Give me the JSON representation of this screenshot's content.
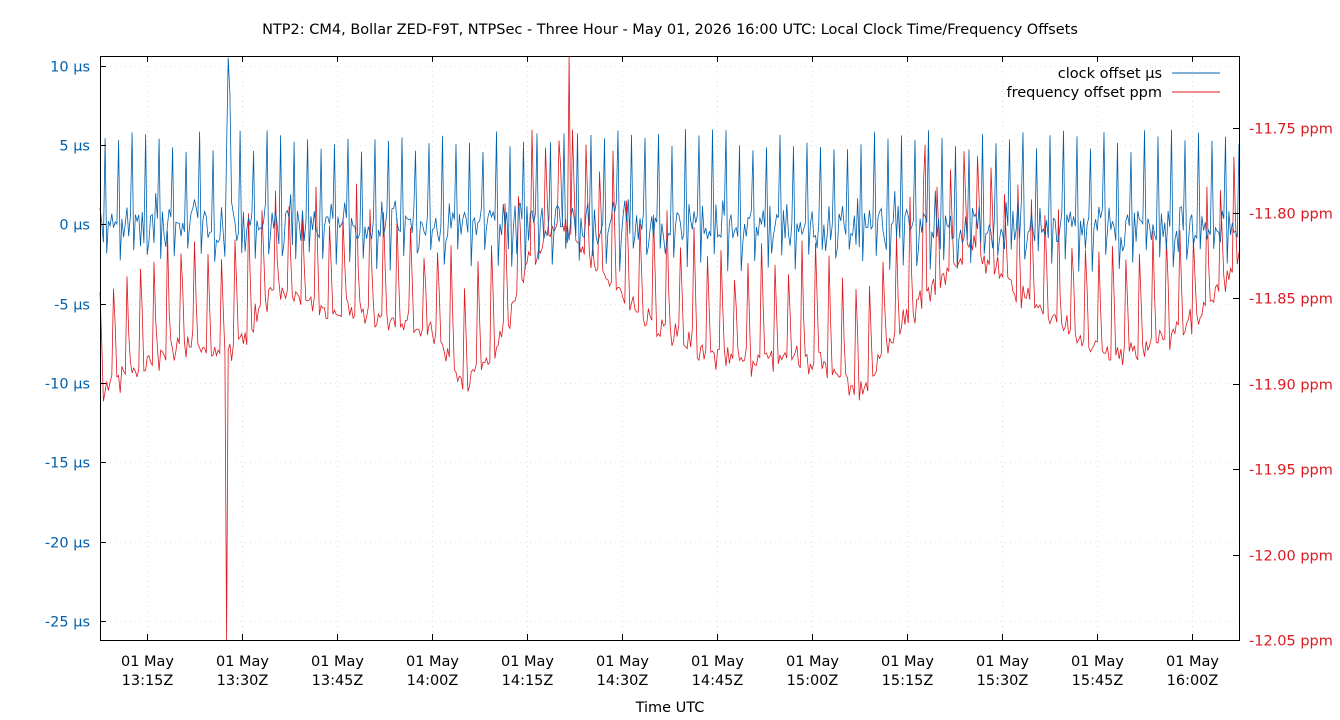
{
  "chart_data": {
    "type": "line",
    "title": "NTP2: CM4, Bollar ZED-F9T, NTPSec - Three Hour - May 01, 2026 16:00 UTC: Local Clock Time/Frequency Offsets",
    "xlabel": "Time UTC",
    "x_range": [
      "2026-05-01T13:07:30Z",
      "2026-05-01T16:07:30Z"
    ],
    "x_ticks": [
      {
        "time": "2026-05-01T13:15:00Z",
        "line1": "01 May",
        "line2": "13:15Z"
      },
      {
        "time": "2026-05-01T13:30:00Z",
        "line1": "01 May",
        "line2": "13:30Z"
      },
      {
        "time": "2026-05-01T13:45:00Z",
        "line1": "01 May",
        "line2": "13:45Z"
      },
      {
        "time": "2026-05-01T14:00:00Z",
        "line1": "01 May",
        "line2": "14:00Z"
      },
      {
        "time": "2026-05-01T14:15:00Z",
        "line1": "01 May",
        "line2": "14:15Z"
      },
      {
        "time": "2026-05-01T14:30:00Z",
        "line1": "01 May",
        "line2": "14:30Z"
      },
      {
        "time": "2026-05-01T14:45:00Z",
        "line1": "01 May",
        "line2": "14:45Z"
      },
      {
        "time": "2026-05-01T15:00:00Z",
        "line1": "01 May",
        "line2": "15:00Z"
      },
      {
        "time": "2026-05-01T15:15:00Z",
        "line1": "01 May",
        "line2": "15:15Z"
      },
      {
        "time": "2026-05-01T15:30:00Z",
        "line1": "01 May",
        "line2": "15:30Z"
      },
      {
        "time": "2026-05-01T15:45:00Z",
        "line1": "01 May",
        "line2": "15:45Z"
      },
      {
        "time": "2026-05-01T16:00:00Z",
        "line1": "01 May",
        "line2": "16:00Z"
      }
    ],
    "y_left": {
      "unit": "µs",
      "range": [
        -26.2,
        10.6
      ],
      "ticks": [
        {
          "value": 10,
          "label": "10 µs"
        },
        {
          "value": 5,
          "label": "5 µs"
        },
        {
          "value": 0,
          "label": "0 µs"
        },
        {
          "value": -5,
          "label": "-5 µs"
        },
        {
          "value": -10,
          "label": "-10 µs"
        },
        {
          "value": -15,
          "label": "-15 µs"
        },
        {
          "value": -20,
          "label": "-20 µs"
        },
        {
          "value": -25,
          "label": "-25 µs"
        }
      ]
    },
    "y_right": {
      "unit": "ppm",
      "range": [
        -12.05,
        -11.708
      ],
      "ticks": [
        {
          "value": -11.75,
          "label": "-11.75 ppm"
        },
        {
          "value": -11.8,
          "label": "-11.80 ppm"
        },
        {
          "value": -11.85,
          "label": "-11.85 ppm"
        },
        {
          "value": -11.9,
          "label": "-11.90 ppm"
        },
        {
          "value": -11.95,
          "label": "-11.95 ppm"
        },
        {
          "value": -12.0,
          "label": "-12.00 ppm"
        },
        {
          "value": -12.05,
          "label": "-12.05 ppm"
        }
      ]
    },
    "grid": true,
    "legend_position": "top-right",
    "series": [
      {
        "name": "clock offset µs",
        "axis": "left",
        "color": "#0060ad",
        "sample_interval_s": 16,
        "spikes": [
          {
            "time": "2026-05-01T13:27:40Z",
            "value": 10.5
          },
          {
            "time": "2026-05-01T13:28:00Z",
            "value": 8.2
          },
          {
            "time": "2026-05-01T13:28:10Z",
            "value": -11.0
          }
        ],
        "typical": {
          "mean": 0,
          "noise_band": [
            -3,
            3
          ],
          "periodic_peaks": [
            4.5,
            6
          ]
        }
      },
      {
        "name": "frequency offset ppm",
        "axis": "right",
        "color": "#dd181f",
        "sample_interval_s": 16,
        "baseline_waypoints": [
          {
            "time": "2026-05-01T13:07:30Z",
            "value": -11.905
          },
          {
            "time": "2026-05-01T13:12:00Z",
            "value": -11.895
          },
          {
            "time": "2026-05-01T13:20:00Z",
            "value": -11.875
          },
          {
            "time": "2026-05-01T13:27:00Z",
            "value": -11.885
          },
          {
            "time": "2026-05-01T13:35:00Z",
            "value": -11.845
          },
          {
            "time": "2026-05-01T13:45:00Z",
            "value": -11.86
          },
          {
            "time": "2026-05-01T13:52:00Z",
            "value": -11.862
          },
          {
            "time": "2026-05-01T14:00:00Z",
            "value": -11.87
          },
          {
            "time": "2026-05-01T14:05:00Z",
            "value": -11.9
          },
          {
            "time": "2026-05-01T14:10:00Z",
            "value": -11.88
          },
          {
            "time": "2026-05-01T14:15:00Z",
            "value": -11.83
          },
          {
            "time": "2026-05-01T14:20:00Z",
            "value": -11.805
          },
          {
            "time": "2026-05-01T14:25:00Z",
            "value": -11.825
          },
          {
            "time": "2026-05-01T14:33:00Z",
            "value": -11.86
          },
          {
            "time": "2026-05-01T14:45:00Z",
            "value": -11.885
          },
          {
            "time": "2026-05-01T15:00:00Z",
            "value": -11.885
          },
          {
            "time": "2026-05-01T15:08:00Z",
            "value": -11.905
          },
          {
            "time": "2026-05-01T15:15:00Z",
            "value": -11.86
          },
          {
            "time": "2026-05-01T15:25:00Z",
            "value": -11.82
          },
          {
            "time": "2026-05-01T15:30:00Z",
            "value": -11.835
          },
          {
            "time": "2026-05-01T15:37:00Z",
            "value": -11.86
          },
          {
            "time": "2026-05-01T15:45:00Z",
            "value": -11.88
          },
          {
            "time": "2026-05-01T15:52:00Z",
            "value": -11.88
          },
          {
            "time": "2026-05-01T16:00:00Z",
            "value": -11.865
          },
          {
            "time": "2026-05-01T16:07:30Z",
            "value": -11.83
          }
        ],
        "spikes": [
          {
            "time": "2026-05-01T13:27:30Z",
            "value": -12.05
          },
          {
            "time": "2026-05-01T13:28:10Z",
            "value": -11.945
          },
          {
            "time": "2026-05-01T14:21:40Z",
            "value": -11.708
          },
          {
            "time": "2026-05-01T15:18:00Z",
            "value": -11.76
          }
        ],
        "periodic_peak_amplitude": 0.06
      }
    ]
  }
}
